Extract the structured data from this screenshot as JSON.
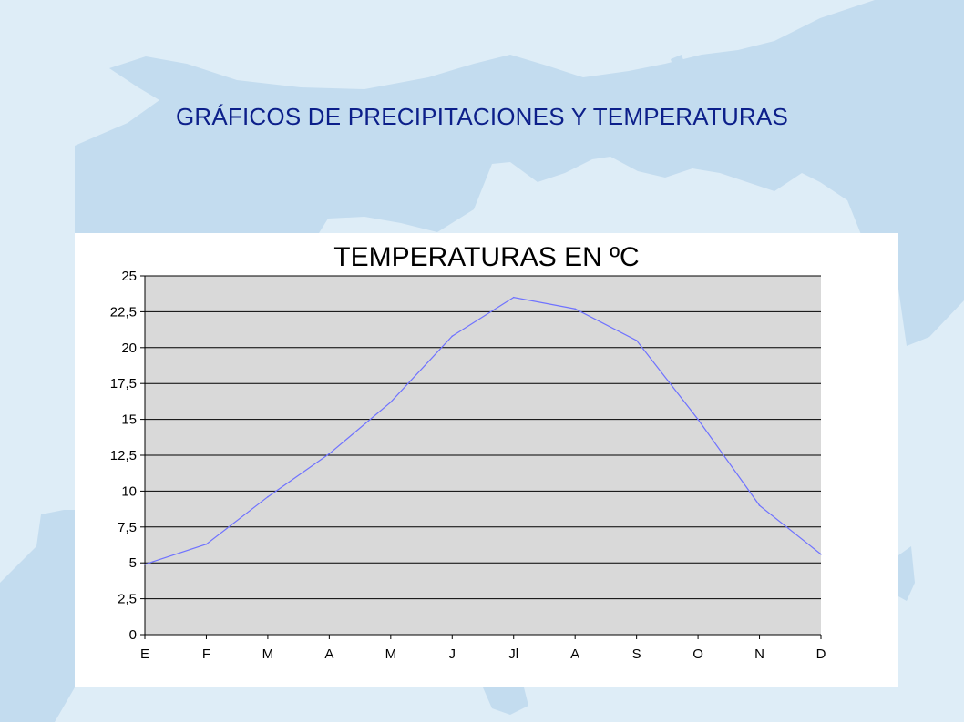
{
  "slide": {
    "title": "GRÁFICOS DE PRECIPITACIONES Y TEMPERATURAS",
    "background_color": "#deedf7",
    "land_color": "#c3dcef"
  },
  "chart_data": {
    "type": "line",
    "title": "TEMPERATURAS EN ºC",
    "xlabel": "",
    "ylabel": "",
    "categories": [
      "E",
      "F",
      "M",
      "A",
      "M",
      "J",
      "Jl",
      "A",
      "S",
      "O",
      "N",
      "D"
    ],
    "series": [
      {
        "values": [
          4.9,
          6.3,
          9.6,
          12.6,
          16.2,
          20.8,
          23.5,
          22.7,
          20.5,
          15.0,
          9.0,
          5.6
        ]
      }
    ],
    "ylim": [
      0,
      25
    ],
    "yticks": [
      "0",
      "2,5",
      "5",
      "7,5",
      "10",
      "12,5",
      "15",
      "17,5",
      "20",
      "22,5",
      "25"
    ],
    "grid": true,
    "legend": "none",
    "colors": {
      "line": "#6f72ff",
      "plot_area": "#d9d9d9",
      "grid": "#000000"
    }
  }
}
